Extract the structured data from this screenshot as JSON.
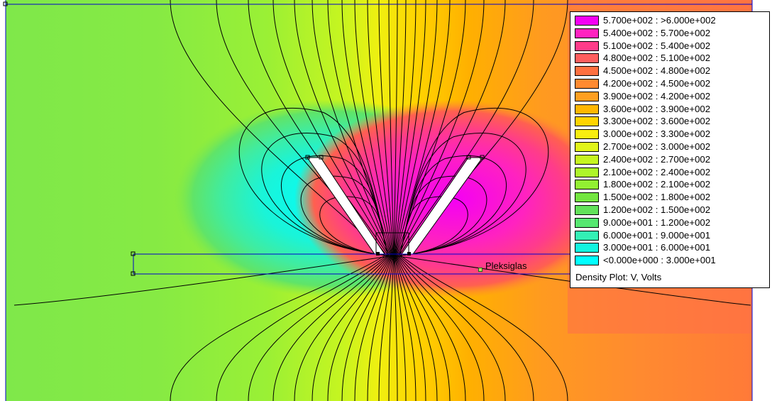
{
  "colors": {
    "c0": "#00ffff",
    "c1": "#33f0b5",
    "c2": "#55e870",
    "c3": "#73e640",
    "c4": "#92f032",
    "c5": "#aef52a",
    "c6": "#c6f520",
    "c7": "#e1f51a",
    "c8": "#f8ee10",
    "c9": "#ffd400",
    "c10": "#ffb700",
    "c11": "#ff9f20",
    "c12": "#ff8a30",
    "c13": "#ff7040",
    "c14": "#ff5e5e",
    "c15": "#ff3c8a",
    "c16": "#ff22c0",
    "c17": "#f400f4",
    "wire": "#0000cc",
    "contour": "#000000"
  },
  "region_label": "Pleksiglas",
  "legend": {
    "title": "Density Plot: V, Volts",
    "items": [
      {
        "label": "5.700e+002 : >6.000e+002",
        "color": "#f400f4"
      },
      {
        "label": "5.400e+002 : 5.700e+002",
        "color": "#ff22c0"
      },
      {
        "label": "5.100e+002 : 5.400e+002",
        "color": "#ff3c8a"
      },
      {
        "label": "4.800e+002 : 5.100e+002",
        "color": "#ff5e5e"
      },
      {
        "label": "4.500e+002 : 4.800e+002",
        "color": "#ff7040"
      },
      {
        "label": "4.200e+002 : 4.500e+002",
        "color": "#ff8a30"
      },
      {
        "label": "3.900e+002 : 4.200e+002",
        "color": "#ff9f20"
      },
      {
        "label": "3.600e+002 : 3.900e+002",
        "color": "#ffb700"
      },
      {
        "label": "3.300e+002 : 3.600e+002",
        "color": "#ffd400"
      },
      {
        "label": "3.000e+002 : 3.300e+002",
        "color": "#f8ee10"
      },
      {
        "label": "2.700e+002 : 3.000e+002",
        "color": "#e1f51a"
      },
      {
        "label": "2.400e+002 : 2.700e+002",
        "color": "#c6f520"
      },
      {
        "label": "2.100e+002 : 2.400e+002",
        "color": "#aef52a"
      },
      {
        "label": "1.800e+002 : 2.100e+002",
        "color": "#92f032"
      },
      {
        "label": "1.500e+002 : 1.800e+002",
        "color": "#73e640"
      },
      {
        "label": "1.200e+002 : 1.500e+002",
        "color": "#62e25a"
      },
      {
        "label": "9.000e+001 : 1.200e+002",
        "color": "#55e870"
      },
      {
        "label": "6.000e+001 : 9.000e+001",
        "color": "#33f0b5"
      },
      {
        "label": "3.000e+001 : 6.000e+001",
        "color": "#12f4df"
      },
      {
        "label": "<0.000e+000 : 3.000e+001",
        "color": "#00ffff"
      }
    ]
  }
}
